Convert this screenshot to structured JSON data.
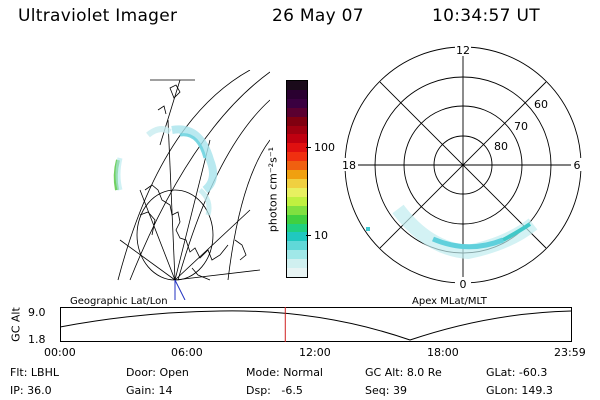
{
  "header": {
    "instrument": "Ultraviolet Imager",
    "date": "26 May 07",
    "time": "10:34:57 UT"
  },
  "left_panel": {
    "caption": "Geographic Lat/Lon"
  },
  "colorbar": {
    "unit_label": "photon cm⁻²s⁻¹",
    "ticks": [
      "100",
      "10"
    ],
    "colors": [
      "#1a0a1a",
      "#2a0030",
      "#3a0040",
      "#5a0030",
      "#800010",
      "#a00010",
      "#c00010",
      "#e01010",
      "#f03010",
      "#f06010",
      "#f0a010",
      "#f0d040",
      "#e8f060",
      "#c0f040",
      "#80e040",
      "#40d040",
      "#20d080",
      "#20c8c0",
      "#60d8d8",
      "#a0e8e8",
      "#d0f0f0",
      "#e8f4f4"
    ]
  },
  "right_panel": {
    "caption": "Apex MLat/MLT",
    "mlt_labels": {
      "top": "12",
      "right": "6",
      "bottom": "0",
      "left": "18"
    },
    "lat_labels": [
      "60",
      "70",
      "80"
    ]
  },
  "timeline": {
    "ylabel": "GC Alt",
    "y_top": "9.0",
    "y_bottom": "1.8",
    "x_ticks": [
      "00:00",
      "06:00",
      "12:00",
      "18:00",
      "23:59"
    ],
    "current_fraction": 0.44
  },
  "footer": {
    "flt_label": "Flt:",
    "flt_value": "LBHL",
    "ip_label": "IP:",
    "ip_value": "36.0",
    "door_label": "Door:",
    "door_value": "Open",
    "gain_label": "Gain:",
    "gain_value": "14",
    "mode_label": "Mode:",
    "mode_value": "Normal",
    "dsp_label": "Dsp:",
    "dsp_value": "-6.5",
    "gcalt_label": "GC Alt:",
    "gcalt_value": "8.0 Re",
    "seq_label": "Seq:",
    "seq_value": "39",
    "glat_label": "GLat:",
    "glat_value": "-60.3",
    "glon_label": "GLon:",
    "glon_value": "149.3"
  }
}
